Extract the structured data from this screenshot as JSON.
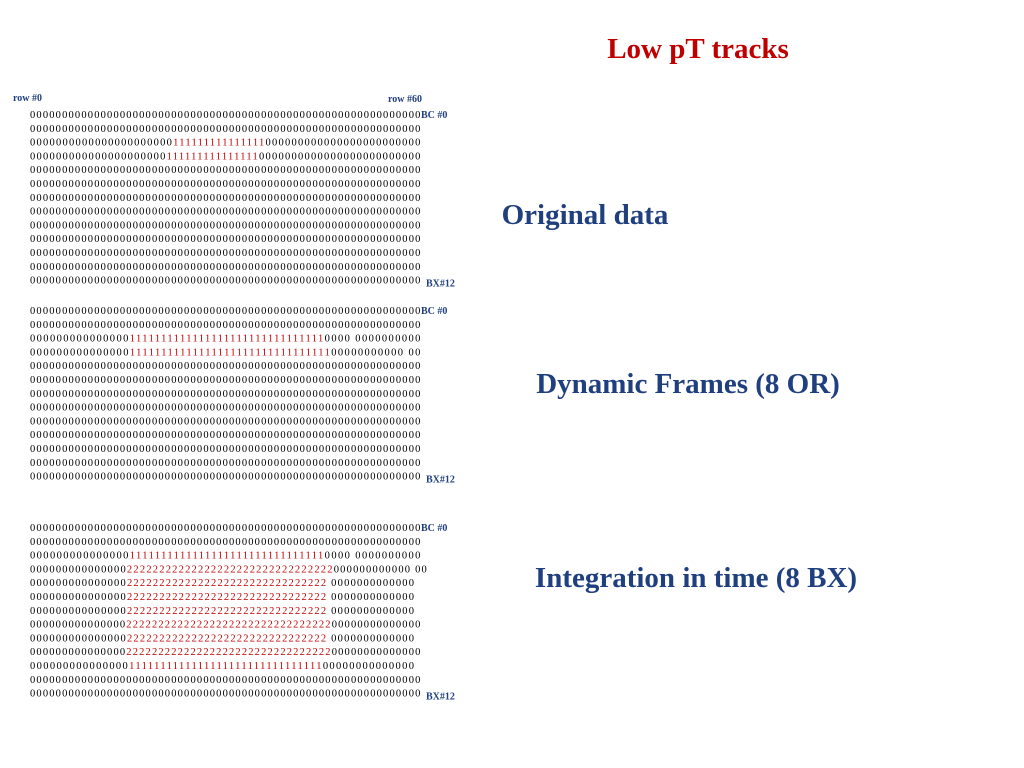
{
  "title": "Low pT tracks",
  "column_labels": [
    "row #0",
    "row #60"
  ],
  "panels": [
    {
      "heading": "Original data",
      "start_label": "BC #0",
      "end_label": "BX#12",
      "rows": [
        [
          "0000000000000000000000000000000000000000000000000000000000000"
        ],
        [
          "0000000000000000000000000000000000000000000000000000000000000"
        ],
        [
          "0000000000000000000000",
          "111111111111111",
          "000000000000000000000000"
        ],
        [
          "000000000000000000000",
          "111111111111111",
          "0000000000000000000000000"
        ],
        [
          "0000000000000000000000000000000000000000000000000000000000000"
        ],
        [
          "0000000000000000000000000000000000000000000000000000000000000"
        ],
        [
          "0000000000000000000000000000000000000000000000000000000000000"
        ],
        [
          "0000000000000000000000000000000000000000000000000000000000000"
        ],
        [
          "0000000000000000000000000000000000000000000000000000000000000"
        ],
        [
          "0000000000000000000000000000000000000000000000000000000000000"
        ],
        [
          "0000000000000000000000000000000000000000000000000000000000000"
        ],
        [
          "0000000000000000000000000000000000000000000000000000000000000"
        ],
        [
          "0000000000000000000000000000000000000000000000000000000000000"
        ]
      ]
    },
    {
      "heading": "Dynamic Frames (8 OR)",
      "start_label": "BC #0",
      "end_label": "BX#12",
      "rows": [
        [
          "0000000000000000000000000000000000000000000000000000000000000"
        ],
        [
          "0000000000000000000000000000000000000000000000000000000000000"
        ],
        [
          "000000000000000",
          "1111111111111111111111111111111",
          "0000 0000000000"
        ],
        [
          "000000000000000",
          "11111111111111111111111111111111",
          "00000000000 00"
        ],
        [
          "0000000000000000000000000000000000000000000000000000000000000"
        ],
        [
          "0000000000000000000000000000000000000000000000000000000000000"
        ],
        [
          "0000000000000000000000000000000000000000000000000000000000000"
        ],
        [
          "0000000000000000000000000000000000000000000000000000000000000"
        ],
        [
          "0000000000000000000000000000000000000000000000000000000000000"
        ],
        [
          "0000000000000000000000000000000000000000000000000000000000000"
        ],
        [
          "0000000000000000000000000000000000000000000000000000000000000"
        ],
        [
          "0000000000000000000000000000000000000000000000000000000000000"
        ],
        [
          "0000000000000000000000000000000000000000000000000000000000000"
        ]
      ]
    },
    {
      "heading": "Integration in time (8 BX)",
      "start_label": "BC #0",
      "end_label": "BX#12",
      "rows": [
        [
          "0000000000000000000000000000000000000000000000000000000000000"
        ],
        [
          "0000000000000000000000000000000000000000000000000000000000000"
        ],
        [
          "000000000000000",
          "1111111111111111111111111111111",
          "0000 0000000000"
        ],
        [
          "000000000000000",
          "22222222222222222222222222222222",
          "000000000000 00"
        ],
        [
          "000000000000000",
          "2222222222222222222222222222222",
          " 0000000000000"
        ],
        [
          "000000000000000",
          "2222222222222222222222222222222",
          " 0000000000000"
        ],
        [
          "000000000000000",
          "2222222222222222222222222222222",
          " 0000000000000"
        ],
        [
          "000000000000000",
          "22222222222222222222222222222222",
          "00000000000000"
        ],
        [
          "000000000000000",
          "2222222222222222222222222222222",
          " 0000000000000"
        ],
        [
          "000000000000000",
          "22222222222222222222222222222222",
          "00000000000000"
        ],
        [
          "000000000000000",
          "1111111111111111111111111111111",
          "00000000000000"
        ],
        [
          "0000000000000000000000000000000000000000000000000000000000000"
        ],
        [
          "0000000000000000000000000000000000000000000000000000000000000"
        ]
      ]
    }
  ]
}
